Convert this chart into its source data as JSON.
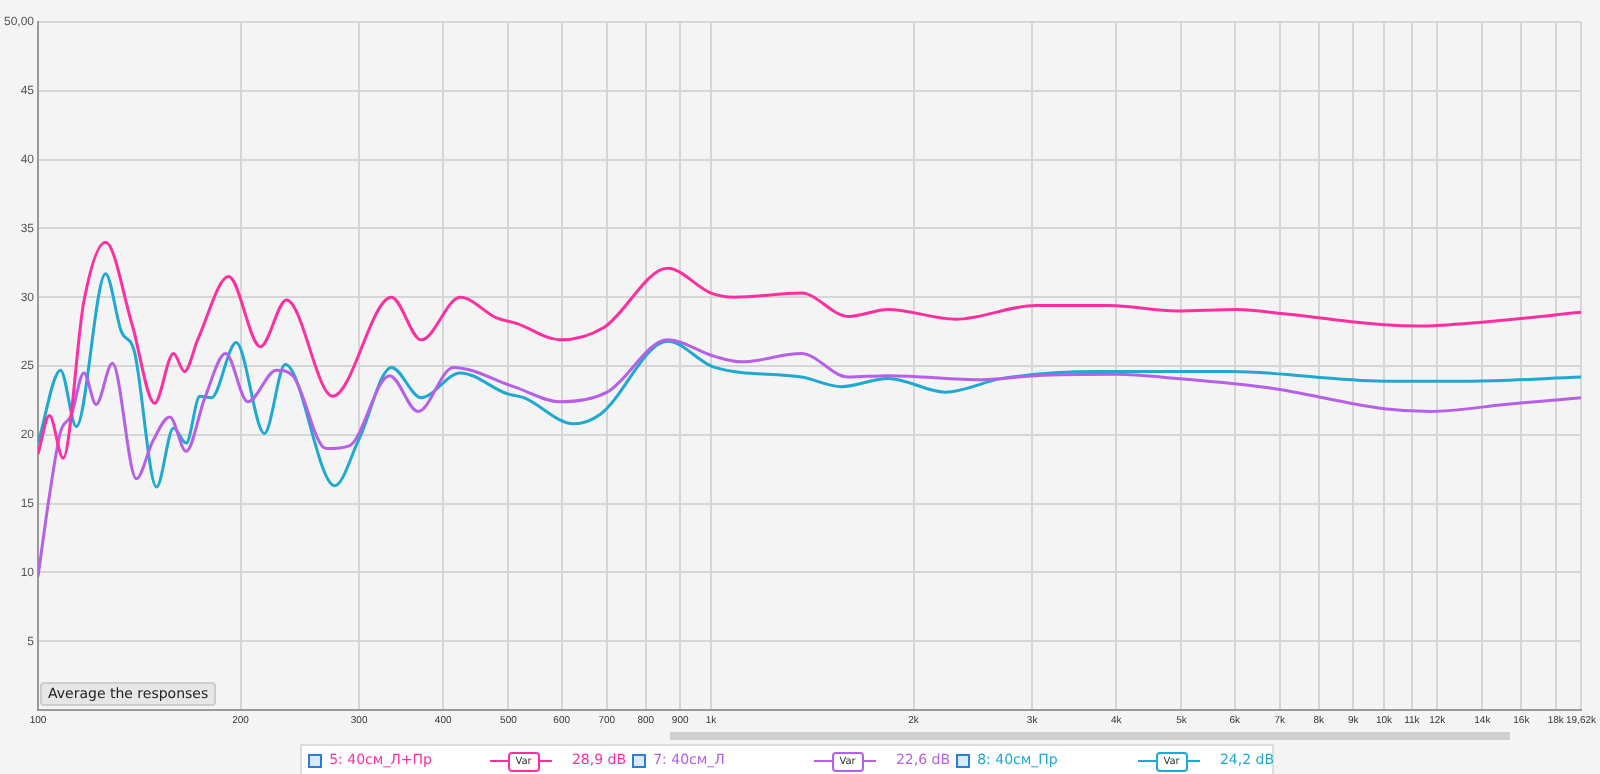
{
  "chart_data": {
    "type": "line",
    "log": "x",
    "grid": true,
    "legend": "bottom",
    "marker": "none",
    "line_style": "solid",
    "xlim": [
      100,
      19620
    ],
    "ylim": [
      0,
      50
    ],
    "xticks": [
      100,
      200,
      300,
      400,
      500,
      600,
      700,
      800,
      900,
      {
        "value": 1000,
        "label": "1k"
      },
      {
        "value": 2000,
        "label": "2k"
      },
      {
        "value": 3000,
        "label": "3k"
      },
      {
        "value": 4000,
        "label": "4k"
      },
      {
        "value": 5000,
        "label": "5k"
      },
      {
        "value": 6000,
        "label": "6k"
      },
      {
        "value": 7000,
        "label": "7k"
      },
      {
        "value": 8000,
        "label": "8k"
      },
      {
        "value": 9000,
        "label": "9k"
      },
      {
        "value": 10000,
        "label": "10k"
      },
      {
        "value": 11000,
        "label": "11k"
      },
      {
        "value": 12000,
        "label": "12k"
      },
      {
        "value": 14000,
        "label": "14k"
      },
      {
        "value": 16000,
        "label": "16k"
      },
      {
        "value": 18000,
        "label": "18k"
      },
      {
        "value": 19620,
        "label": "19,62k"
      }
    ],
    "yticks": [
      5,
      10,
      15,
      20,
      25,
      30,
      35,
      40,
      45,
      {
        "value": 50,
        "label": "50,00"
      }
    ],
    "annotations": [
      "Average the responses",
      "28,9 dB",
      "22,6 dB",
      "24,2 dB",
      "Var"
    ],
    "series": [
      {
        "name": "5: 40см_Л+Пр",
        "color": "#ff2fa0",
        "x": [
          100,
          104,
          109,
          117,
          126,
          138,
          149,
          159,
          165,
          173,
          192,
          214,
          234,
          274,
          335,
          371,
          424,
          480,
          514,
          597,
          693,
          862,
          1000,
          1084,
          1362,
          1599,
          1834,
          2309,
          3040,
          3909,
          4918,
          6043,
          7093,
          10000,
          11220,
          14100,
          19620
        ],
        "values": [
          18.6,
          21.4,
          18.3,
          29.7,
          34.0,
          28.0,
          22.3,
          25.9,
          24.6,
          27.0,
          31.5,
          26.4,
          29.8,
          22.8,
          30.0,
          26.9,
          30.0,
          28.5,
          28.1,
          26.9,
          27.8,
          32.1,
          30.3,
          30.0,
          30.3,
          28.6,
          29.1,
          28.4,
          29.4,
          29.4,
          29.0,
          29.1,
          28.8,
          28.0,
          27.9,
          28.2,
          28.9
        ]
      },
      {
        "name": "7: 40см_Л",
        "color": "#b660e8",
        "x": [
          100,
          104,
          108,
          112,
          117,
          122,
          129,
          140,
          148,
          157,
          166,
          177,
          190,
          205,
          226,
          239,
          268,
          290,
          333,
          367,
          414,
          509,
          597,
          701,
          862,
          1012,
          1109,
          1362,
          1599,
          1834,
          2529,
          3040,
          4000,
          4918,
          6776,
          10000,
          11740,
          15110,
          19620
        ],
        "values": [
          9.7,
          15.6,
          20.2,
          21.4,
          24.5,
          22.2,
          25.2,
          16.8,
          19.5,
          21.3,
          18.8,
          22.7,
          25.9,
          22.4,
          24.7,
          24.3,
          19.0,
          19.2,
          24.3,
          21.7,
          24.9,
          23.5,
          22.4,
          23.1,
          26.9,
          25.7,
          25.3,
          25.9,
          24.2,
          24.3,
          24.0,
          24.3,
          24.4,
          24.1,
          23.4,
          21.9,
          21.7,
          22.2,
          22.7
        ]
      },
      {
        "name": "8: 40см_Пр",
        "color": "#1fa8d0",
        "x": [
          100,
          108,
          114,
          126,
          133,
          139,
          150,
          159,
          166,
          174,
          181,
          197,
          217,
          233,
          276,
          300,
          335,
          371,
          424,
          497,
          527,
          625,
          685,
          862,
          1012,
          1362,
          1563,
          1834,
          2230,
          2710,
          3737,
          5907,
          10000,
          13460,
          19620
        ],
        "values": [
          19.4,
          24.7,
          20.6,
          31.7,
          27.5,
          26.1,
          16.2,
          20.5,
          19.4,
          22.8,
          22.7,
          26.7,
          20.1,
          25.1,
          16.3,
          19.7,
          24.9,
          22.7,
          24.5,
          23.0,
          22.7,
          20.8,
          21.5,
          26.8,
          24.9,
          24.2,
          23.5,
          24.1,
          23.1,
          24.1,
          24.6,
          24.6,
          23.9,
          23.9,
          24.2
        ]
      }
    ]
  }
}
